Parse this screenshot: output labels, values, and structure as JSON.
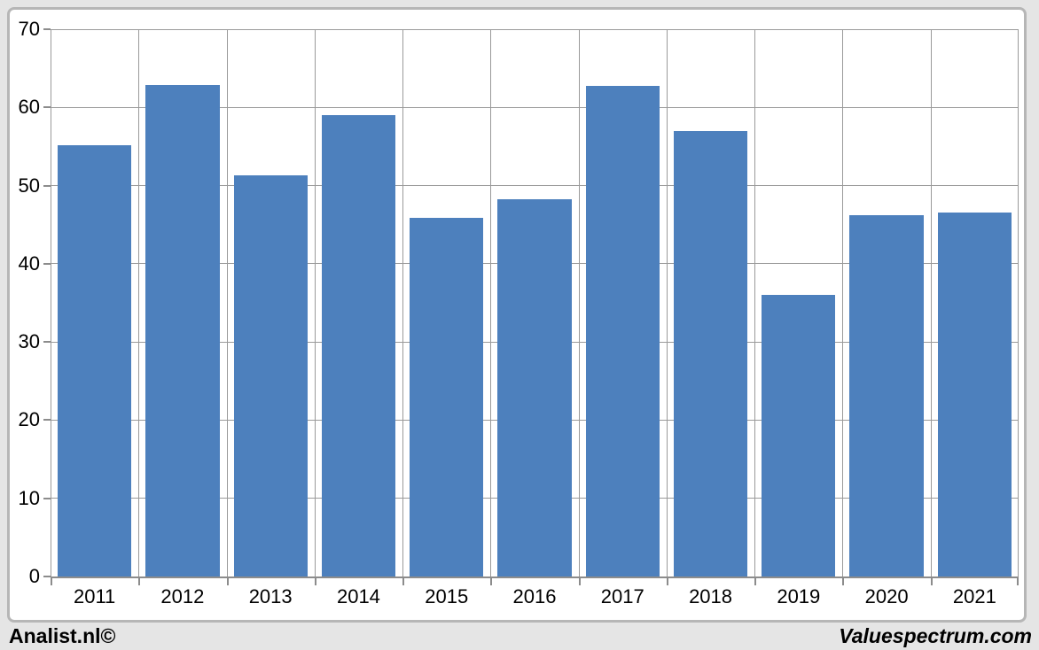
{
  "chart_data": {
    "type": "bar",
    "title": "",
    "categories": [
      "2011",
      "2012",
      "2013",
      "2014",
      "2015",
      "2016",
      "2017",
      "2018",
      "2019",
      "2020",
      "2021"
    ],
    "values": [
      55.2,
      62.9,
      51.3,
      59.0,
      45.9,
      48.2,
      62.8,
      57.0,
      36.0,
      46.2,
      46.5
    ],
    "ylim": [
      0,
      70
    ],
    "yticks": [
      0,
      10,
      20,
      30,
      40,
      50,
      60,
      70
    ],
    "grid": "both",
    "legend": "none",
    "xlabel": "",
    "ylabel": "",
    "bar_color": "#4d80bd",
    "gridline_color": "#9a9a9a",
    "axis_color": "#8c8c8c",
    "plot_background": "#ffffff",
    "chart_border_color": "#b6b6b6",
    "page_background": "#e5e5e5"
  },
  "footer": {
    "left_text": "Analist.nl©",
    "right_text": "Valuespectrum.com"
  }
}
